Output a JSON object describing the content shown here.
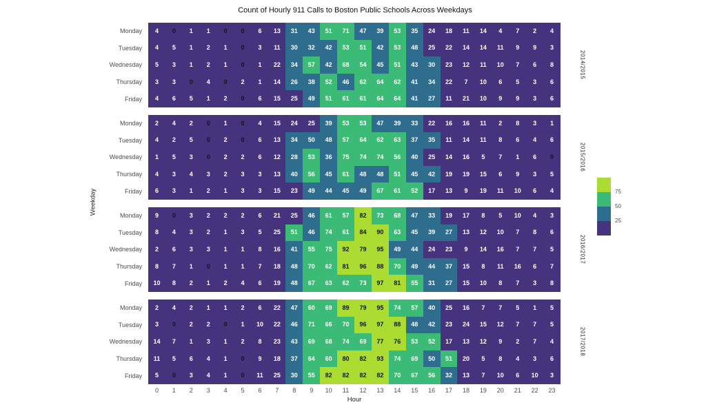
{
  "chart_data": {
    "type": "heatmap",
    "title": "Count of Hourly 911 Calls to Boston Public Schools Across Weekdays",
    "xlabel": "Hour",
    "ylabel": "Weekday",
    "hours": [
      "0",
      "1",
      "2",
      "3",
      "4",
      "5",
      "6",
      "7",
      "8",
      "9",
      "10",
      "11",
      "12",
      "13",
      "14",
      "15",
      "16",
      "17",
      "18",
      "19",
      "20",
      "21",
      "22",
      "23"
    ],
    "weekdays": [
      "Monday",
      "Tuesday",
      "Wednesday",
      "Thursday",
      "Friday"
    ],
    "facets": [
      {
        "label": "2014/2015",
        "rows": [
          [
            4,
            0,
            1,
            1,
            0,
            0,
            6,
            13,
            31,
            43,
            51,
            71,
            47,
            39,
            53,
            35,
            24,
            18,
            11,
            14,
            4,
            7,
            2,
            4
          ],
          [
            4,
            5,
            1,
            2,
            1,
            0,
            3,
            11,
            30,
            32,
            42,
            53,
            51,
            42,
            53,
            48,
            25,
            22,
            14,
            14,
            11,
            9,
            9,
            3
          ],
          [
            5,
            3,
            1,
            2,
            1,
            0,
            1,
            22,
            34,
            57,
            42,
            68,
            54,
            45,
            51,
            43,
            30,
            23,
            12,
            11,
            10,
            7,
            6,
            8
          ],
          [
            3,
            3,
            0,
            4,
            0,
            2,
            1,
            14,
            26,
            38,
            52,
            46,
            62,
            64,
            62,
            41,
            34,
            22,
            7,
            10,
            6,
            5,
            3,
            6
          ],
          [
            4,
            6,
            5,
            1,
            2,
            0,
            6,
            15,
            25,
            49,
            51,
            61,
            61,
            64,
            64,
            41,
            27,
            11,
            21,
            10,
            9,
            9,
            3,
            6
          ]
        ]
      },
      {
        "label": "2015/2016",
        "rows": [
          [
            2,
            4,
            2,
            0,
            1,
            0,
            4,
            15,
            24,
            25,
            39,
            53,
            53,
            47,
            39,
            33,
            22,
            16,
            16,
            11,
            2,
            8,
            3,
            1
          ],
          [
            4,
            2,
            5,
            0,
            2,
            0,
            6,
            13,
            34,
            50,
            48,
            57,
            64,
            62,
            63,
            37,
            35,
            11,
            14,
            11,
            8,
            6,
            4,
            6
          ],
          [
            1,
            5,
            3,
            0,
            2,
            2,
            6,
            12,
            28,
            53,
            36,
            75,
            74,
            74,
            56,
            40,
            25,
            14,
            16,
            5,
            7,
            1,
            6,
            0
          ],
          [
            4,
            3,
            4,
            3,
            2,
            3,
            3,
            13,
            40,
            56,
            45,
            61,
            48,
            48,
            51,
            45,
            42,
            19,
            19,
            15,
            6,
            9,
            3,
            5
          ],
          [
            6,
            3,
            1,
            2,
            1,
            3,
            3,
            15,
            23,
            49,
            44,
            45,
            49,
            67,
            61,
            52,
            17,
            13,
            9,
            19,
            11,
            10,
            6,
            4
          ]
        ]
      },
      {
        "label": "2016/2017",
        "rows": [
          [
            9,
            0,
            3,
            2,
            2,
            2,
            6,
            21,
            25,
            46,
            61,
            57,
            82,
            73,
            68,
            47,
            33,
            19,
            17,
            8,
            5,
            10,
            4,
            3
          ],
          [
            8,
            4,
            3,
            2,
            1,
            3,
            5,
            25,
            51,
            46,
            74,
            61,
            84,
            90,
            63,
            45,
            39,
            27,
            13,
            12,
            10,
            7,
            8,
            6
          ],
          [
            2,
            6,
            3,
            3,
            1,
            1,
            8,
            16,
            41,
            55,
            75,
            92,
            79,
            95,
            49,
            44,
            24,
            23,
            9,
            14,
            16,
            7,
            7,
            5
          ],
          [
            8,
            7,
            1,
            0,
            1,
            1,
            7,
            18,
            48,
            70,
            62,
            81,
            96,
            88,
            70,
            49,
            44,
            37,
            15,
            8,
            11,
            16,
            6,
            7
          ],
          [
            10,
            8,
            2,
            1,
            2,
            4,
            6,
            19,
            48,
            67,
            63,
            62,
            73,
            97,
            81,
            55,
            31,
            27,
            15,
            10,
            8,
            7,
            3,
            8
          ]
        ]
      },
      {
        "label": "2017/2018",
        "rows": [
          [
            2,
            4,
            2,
            1,
            1,
            2,
            6,
            22,
            47,
            60,
            69,
            89,
            79,
            95,
            74,
            57,
            40,
            25,
            16,
            7,
            7,
            5,
            1,
            5
          ],
          [
            3,
            0,
            2,
            2,
            0,
            1,
            10,
            22,
            46,
            71,
            66,
            70,
            96,
            97,
            88,
            48,
            42,
            23,
            24,
            15,
            12,
            7,
            7,
            5
          ],
          [
            14,
            7,
            1,
            3,
            1,
            2,
            8,
            23,
            43,
            69,
            68,
            74,
            69,
            77,
            76,
            53,
            52,
            17,
            13,
            12,
            9,
            2,
            7,
            4
          ],
          [
            11,
            5,
            6,
            4,
            1,
            0,
            9,
            18,
            37,
            64,
            60,
            80,
            82,
            93,
            74,
            69,
            50,
            51,
            20,
            5,
            8,
            4,
            3,
            6
          ],
          [
            5,
            0,
            3,
            4,
            1,
            0,
            11,
            25,
            30,
            55,
            82,
            82,
            82,
            82,
            70,
            67,
            56,
            32,
            13,
            7,
            10,
            6,
            10,
            3
          ]
        ]
      }
    ],
    "color_bins": [
      {
        "max": 25,
        "color": "#46337E"
      },
      {
        "max": 50,
        "color": "#2E6D8E"
      },
      {
        "max": 75,
        "color": "#3BBB75"
      },
      {
        "max": 1000,
        "color": "#ABDC32"
      }
    ],
    "cell_text": {
      "default_color": "#FFFFFF",
      "dark_color": "#141414",
      "dark_if_zero": true,
      "dark_above": 75
    },
    "legend": {
      "position": "right",
      "tick_labels": [
        "75",
        "50",
        "25"
      ],
      "swatch_colors_top_to_bottom": [
        "#ABDC32",
        "#3BBB75",
        "#2E6D8E",
        "#46337E"
      ]
    },
    "grid": false
  }
}
